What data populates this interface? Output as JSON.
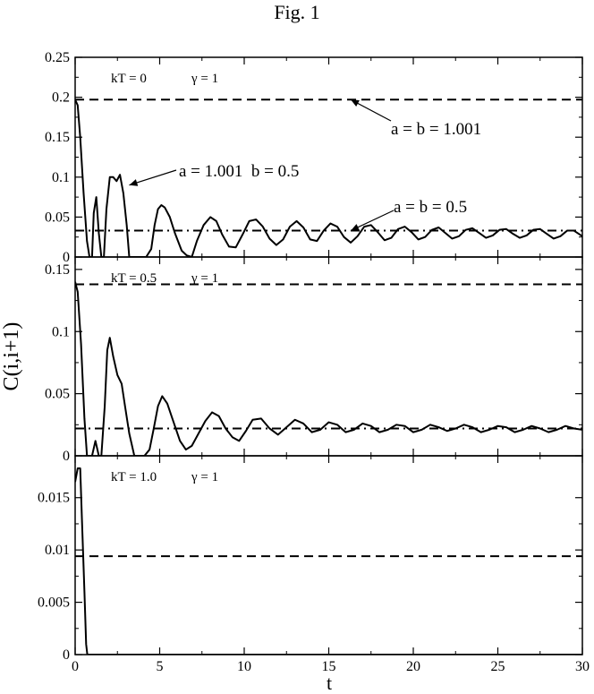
{
  "figure_title": "Fig. 1",
  "colors": {
    "line": "#000000",
    "background": "#ffffff"
  },
  "chart_data": {
    "type": "line",
    "xlabel": "t",
    "ylabel": "C(i,i+1)",
    "xlim": [
      0,
      30
    ],
    "x_ticks": [
      0,
      5,
      10,
      15,
      20,
      25,
      30
    ],
    "x_tick_labels": [
      "0",
      "5",
      "10",
      "15",
      "20",
      "25",
      "30"
    ],
    "shared_x_axis": true,
    "panels": [
      {
        "label_kT": "kT = 0",
        "label_gamma": "γ = 1",
        "ylim": [
          0,
          0.25
        ],
        "y_ticks": [
          0,
          0.05,
          0.1,
          0.15,
          0.2,
          0.25
        ],
        "y_tick_labels": [
          "0",
          "0.05",
          "0.1",
          "0.15",
          "0.2",
          "0.25"
        ],
        "annotations": [
          {
            "text": "a = b = 1.001",
            "points_to": [
              16.3,
              0.197
            ]
          },
          {
            "text": "a = 1.001  b = 0.5",
            "points_to": [
              3.2,
              0.09
            ]
          },
          {
            "text": "a = b = 0.5",
            "points_to": [
              16.3,
              0.033
            ]
          }
        ],
        "series": [
          {
            "name": "a = b = 1.001",
            "style": "dashed",
            "x": [
              0,
              30
            ],
            "y": [
              0.197,
              0.197
            ]
          },
          {
            "name": "a = b = 0.5",
            "style": "dashdot",
            "x": [
              0,
              30
            ],
            "y": [
              0.033,
              0.033
            ]
          },
          {
            "name": "a = 1.001  b = 0.5",
            "style": "solid",
            "x": [
              0,
              0.15,
              0.3,
              0.5,
              0.7,
              0.85,
              1.0,
              1.1,
              1.25,
              1.4,
              1.55,
              1.7,
              1.85,
              2.05,
              2.25,
              2.45,
              2.65,
              2.85,
              3.05,
              3.2,
              3.4,
              3.6,
              3.9,
              4.2,
              4.5,
              4.7,
              4.9,
              5.1,
              5.3,
              5.6,
              5.9,
              6.3,
              6.6,
              6.9,
              7.2,
              7.6,
              8.0,
              8.35,
              8.7,
              9.1,
              9.5,
              9.9,
              10.3,
              10.7,
              11.1,
              11.5,
              11.9,
              12.3,
              12.7,
              13.1,
              13.5,
              13.9,
              14.3,
              14.7,
              15.1,
              15.5,
              15.9,
              16.3,
              16.7,
              17.1,
              17.5,
              17.9,
              18.3,
              18.7,
              19.1,
              19.5,
              19.9,
              20.3,
              20.7,
              21.1,
              21.5,
              21.9,
              22.3,
              22.7,
              23.1,
              23.5,
              23.9,
              24.3,
              24.7,
              25.1,
              25.5,
              25.9,
              26.3,
              26.7,
              27.1,
              27.5,
              27.9,
              28.3,
              28.7,
              29.1,
              29.5,
              30.0
            ],
            "y": [
              0.197,
              0.19,
              0.15,
              0.08,
              0.02,
              0.0,
              0.0,
              0.055,
              0.075,
              0.03,
              0.0,
              0.0,
              0.06,
              0.1,
              0.1,
              0.095,
              0.103,
              0.08,
              0.04,
              0.0,
              0.0,
              0.0,
              0.0,
              0.0,
              0.01,
              0.04,
              0.06,
              0.065,
              0.062,
              0.05,
              0.03,
              0.008,
              0.002,
              0.0,
              0.02,
              0.04,
              0.05,
              0.045,
              0.028,
              0.013,
              0.012,
              0.028,
              0.045,
              0.047,
              0.038,
              0.023,
              0.015,
              0.022,
              0.038,
              0.045,
              0.037,
              0.022,
              0.02,
              0.033,
              0.042,
              0.038,
              0.025,
              0.018,
              0.026,
              0.038,
              0.04,
              0.031,
              0.021,
              0.024,
              0.035,
              0.038,
              0.031,
              0.022,
              0.025,
              0.034,
              0.037,
              0.03,
              0.023,
              0.026,
              0.034,
              0.036,
              0.03,
              0.024,
              0.027,
              0.034,
              0.035,
              0.029,
              0.024,
              0.027,
              0.034,
              0.035,
              0.029,
              0.023,
              0.026,
              0.033,
              0.033,
              0.026
            ]
          }
        ]
      },
      {
        "label_kT": "kT = 0.5",
        "label_gamma": "γ = 1",
        "ylim": [
          0,
          0.16
        ],
        "y_ticks": [
          0,
          0.05,
          0.1,
          0.15
        ],
        "y_tick_labels": [
          "0",
          "0.05",
          "0.1",
          "0.15"
        ],
        "series": [
          {
            "name": "a = b = 1.001",
            "style": "dashed",
            "x": [
              0,
              30
            ],
            "y": [
              0.138,
              0.138
            ]
          },
          {
            "name": "a = b = 0.5",
            "style": "dashdot",
            "x": [
              0,
              30
            ],
            "y": [
              0.022,
              0.022
            ]
          },
          {
            "name": "a = 1.001  b = 0.5",
            "style": "solid",
            "x": [
              0,
              0.15,
              0.35,
              0.55,
              0.7,
              0.85,
              1.0,
              1.2,
              1.4,
              1.55,
              1.75,
              1.9,
              2.05,
              2.25,
              2.5,
              2.75,
              2.95,
              3.2,
              3.5,
              3.8,
              4.1,
              4.4,
              4.65,
              4.9,
              5.15,
              5.45,
              5.8,
              6.2,
              6.55,
              6.9,
              7.3,
              7.7,
              8.1,
              8.5,
              8.9,
              9.3,
              9.7,
              10.1,
              10.5,
              11.0,
              11.5,
              12.0,
              12.5,
              13.0,
              13.5,
              14.0,
              14.5,
              15.0,
              15.5,
              16.0,
              16.5,
              17.0,
              17.5,
              18.0,
              18.5,
              19.0,
              19.5,
              20.0,
              20.5,
              21.0,
              21.5,
              22.0,
              22.5,
              23.0,
              23.5,
              24.0,
              24.5,
              25.0,
              25.5,
              26.0,
              26.5,
              27.0,
              27.5,
              28.0,
              28.5,
              29.0,
              29.5,
              30.0
            ],
            "y": [
              0.14,
              0.132,
              0.09,
              0.03,
              0.0,
              0.0,
              0.0,
              0.012,
              0.0,
              0.0,
              0.04,
              0.085,
              0.095,
              0.08,
              0.065,
              0.058,
              0.04,
              0.018,
              0.0,
              0.0,
              0.0,
              0.005,
              0.022,
              0.04,
              0.048,
              0.042,
              0.028,
              0.012,
              0.005,
              0.008,
              0.018,
              0.028,
              0.035,
              0.032,
              0.022,
              0.015,
              0.012,
              0.02,
              0.029,
              0.03,
              0.022,
              0.017,
              0.023,
              0.029,
              0.026,
              0.019,
              0.021,
              0.027,
              0.025,
              0.019,
              0.021,
              0.026,
              0.024,
              0.019,
              0.021,
              0.025,
              0.024,
              0.019,
              0.021,
              0.025,
              0.023,
              0.02,
              0.022,
              0.025,
              0.023,
              0.019,
              0.021,
              0.024,
              0.023,
              0.019,
              0.021,
              0.024,
              0.022,
              0.019,
              0.021,
              0.024,
              0.022,
              0.021
            ]
          }
        ]
      },
      {
        "label_kT": "kT = 1.0",
        "label_gamma": "γ = 1",
        "ylim": [
          0,
          0.019
        ],
        "y_ticks": [
          0,
          0.005,
          0.01,
          0.015
        ],
        "y_tick_labels": [
          "0",
          "0.005",
          "0.01",
          "0.015"
        ],
        "series": [
          {
            "name": "a = b = 1.001",
            "style": "dashed",
            "x": [
              0,
              30
            ],
            "y": [
              0.0094,
              0.0094
            ]
          },
          {
            "name": "a = 1.001  b = 0.5",
            "style": "solid",
            "x": [
              0,
              0.15,
              0.3,
              0.4,
              0.55,
              0.65,
              0.72,
              30.0
            ],
            "y": [
              0.0165,
              0.0178,
              0.0178,
              0.013,
              0.006,
              0.001,
              0.0,
              0.0
            ]
          }
        ]
      }
    ]
  }
}
